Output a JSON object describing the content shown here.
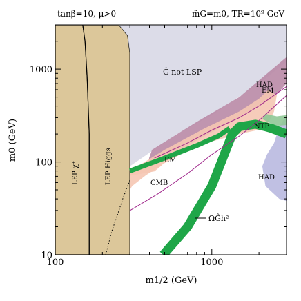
{
  "chart_data": {
    "type": "area",
    "title": "",
    "header_left": "tanβ=10, μ>0",
    "header_right": "m̃G=m0, TR=10⁹ GeV",
    "xlabel": "m1/2 (GeV)",
    "ylabel": "m0 (GeV)",
    "x_scale": "log",
    "y_scale": "log",
    "xlim": [
      100,
      3000
    ],
    "ylim": [
      10,
      3000
    ],
    "x_ticks": [
      {
        "value": 100,
        "label": "100"
      },
      {
        "value": 1000,
        "label": "1000"
      }
    ],
    "y_ticks": [
      {
        "value": 10,
        "label": "10"
      },
      {
        "value": 100,
        "label": "100"
      },
      {
        "value": 1000,
        "label": "1000"
      }
    ],
    "grid": false,
    "legend": "none",
    "colors": {
      "lep": "#dcc79a",
      "not_lsp": "#d8d8e6",
      "had_mauve": "#b98aa6",
      "em_salmon": "#f5c6b2",
      "had_blue": "#b9b9e0",
      "ntp_green": "#8fc896",
      "relic_green": "#1fa648",
      "cmb_line": "#a0288c"
    },
    "regions": [
      {
        "name": "LEP χ⁺",
        "points": [
          [
            100,
            10
          ],
          [
            165,
            10
          ],
          [
            165,
            200
          ],
          [
            160,
            800
          ],
          [
            155,
            2000
          ],
          [
            150,
            3000
          ],
          [
            100,
            3000
          ]
        ]
      },
      {
        "name": "LEP Higgs",
        "points": [
          [
            165,
            10
          ],
          [
            300,
            10
          ],
          [
            300,
            1500
          ],
          [
            290,
            2300
          ],
          [
            255,
            3000
          ],
          [
            150,
            3000
          ],
          [
            155,
            2000
          ],
          [
            160,
            800
          ],
          [
            165,
            200
          ]
        ]
      },
      {
        "name": "Ĝ not LSP",
        "points": [
          [
            300,
            90
          ],
          [
            600,
            200
          ],
          [
            1000,
            320
          ],
          [
            2000,
            700
          ],
          [
            3000,
            1200
          ],
          [
            3000,
            3000
          ],
          [
            255,
            3000
          ],
          [
            290,
            2300
          ],
          [
            300,
            1500
          ]
        ]
      },
      {
        "name": "HAD (upper)",
        "points": [
          [
            415,
            135
          ],
          [
            800,
            270
          ],
          [
            1500,
            500
          ],
          [
            3000,
            1350
          ],
          [
            3000,
            700
          ],
          [
            2500,
            500
          ],
          [
            1500,
            300
          ],
          [
            900,
            190
          ],
          [
            600,
            130
          ],
          [
            450,
            96
          ],
          [
            395,
            90
          ],
          [
            398,
            110
          ]
        ]
      },
      {
        "name": "EM (upper)",
        "points": [
          [
            300,
            80
          ],
          [
            500,
            135
          ],
          [
            900,
            230
          ],
          [
            1500,
            350
          ],
          [
            2000,
            480
          ],
          [
            2300,
            600
          ],
          [
            2600,
            520
          ],
          [
            2500,
            350
          ],
          [
            2200,
            230
          ],
          [
            1500,
            200
          ],
          [
            800,
            150
          ],
          [
            500,
            97
          ],
          [
            380,
            72
          ],
          [
            310,
            55
          ],
          [
            300,
            50
          ]
        ]
      },
      {
        "name": "EM (lower)",
        "points": [
          [
            300,
            71
          ],
          [
            430,
            79
          ],
          [
            480,
            92
          ],
          [
            440,
            99
          ],
          [
            340,
            86
          ],
          [
            300,
            84
          ]
        ]
      },
      {
        "name": "HAD (lower)",
        "points": [
          [
            2500,
            160
          ],
          [
            2250,
            120
          ],
          [
            2100,
            90
          ],
          [
            2200,
            55
          ],
          [
            2700,
            40
          ],
          [
            3000,
            38
          ],
          [
            3000,
            320
          ],
          [
            2700,
            240
          ]
        ]
      },
      {
        "name": "NTP",
        "points": [
          [
            2100,
            290
          ],
          [
            2550,
            245
          ],
          [
            3000,
            250
          ],
          [
            3000,
            320
          ],
          [
            2600,
            310
          ],
          [
            2200,
            330
          ]
        ]
      }
    ],
    "bands": [
      {
        "name": "ΩĜh²",
        "color_key": "relic_green",
        "points": [
          [
            490,
            10
          ],
          [
            700,
            20
          ],
          [
            1000,
            55
          ],
          [
            1200,
            120
          ],
          [
            1350,
            200
          ],
          [
            1500,
            240
          ],
          [
            1900,
            255
          ],
          [
            2200,
            240
          ],
          [
            2400,
            230
          ],
          [
            3000,
            200
          ]
        ]
      },
      {
        "name": "NTP-EM boundary band",
        "color_key": "relic_green",
        "points": [
          [
            300,
            80
          ],
          [
            500,
            110
          ],
          [
            800,
            150
          ],
          [
            1100,
            190
          ],
          [
            1300,
            230
          ]
        ]
      }
    ],
    "lines": [
      {
        "name": "CMB",
        "style": "solid",
        "color_key": "cmb_line",
        "points": [
          [
            300,
            30
          ],
          [
            450,
            45
          ],
          [
            700,
            75
          ],
          [
            1000,
            120
          ],
          [
            1500,
            190
          ],
          [
            2000,
            280
          ],
          [
            3000,
            520
          ]
        ]
      },
      {
        "name": "CMB (upper)",
        "style": "solid",
        "color_key": "cmb_line",
        "points": [
          [
            430,
            110
          ],
          [
            700,
            160
          ],
          [
            1000,
            220
          ],
          [
            1500,
            300
          ],
          [
            2000,
            400
          ],
          [
            3000,
            650
          ]
        ]
      },
      {
        "name": "LEP Higgs edge",
        "style": "dotted",
        "color_key": "black",
        "points": [
          [
            210,
            10
          ],
          [
            230,
            18
          ],
          [
            250,
            27
          ],
          [
            270,
            40
          ],
          [
            290,
            55
          ],
          [
            300,
            64
          ]
        ]
      }
    ],
    "labels": {
      "lep_chi": "LEP χ⁺",
      "lep_higgs": "LEP Higgs",
      "not_lsp": "Ĝ not LSP",
      "had_upper": "HAD",
      "em_upper": "EM",
      "em_lower": "EM",
      "ntp": "NTP",
      "cmb": "CMB",
      "had_lower": "HAD",
      "relic": "ΩĜh²"
    }
  }
}
